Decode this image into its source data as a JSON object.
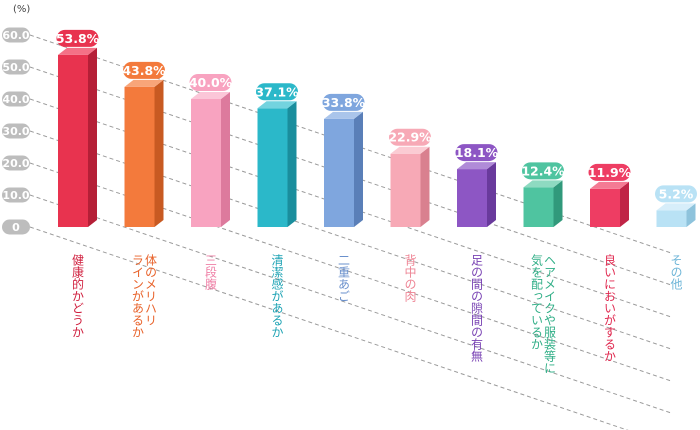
{
  "chart_data": {
    "type": "bar",
    "unit_label": "(%)",
    "ylim": [
      0,
      60
    ],
    "y_ticks": [
      "0",
      "10.0",
      "20.0",
      "30.0",
      "40.0",
      "50.0",
      "60.0"
    ],
    "grid": true,
    "categories": [
      "健康的かどうか",
      "体のメリハリ\nラインがあるか",
      "三段腹",
      "清潔感があるか",
      "二重あご",
      "背中の肉",
      "足の間の隙間の有無",
      "ヘアメイクや服装等に\n気を配っているか",
      "良いにおいがするか",
      "その他"
    ],
    "values": [
      53.8,
      43.8,
      40.0,
      37.1,
      33.8,
      22.9,
      18.1,
      12.4,
      11.9,
      5.2
    ],
    "value_labels": [
      "53.8%",
      "43.8%",
      "40.0%",
      "37.1%",
      "33.8%",
      "22.9%",
      "18.1%",
      "12.4%",
      "11.9%",
      "5.2%"
    ],
    "colors": [
      {
        "front": "#e8334f",
        "side": "#b51f37",
        "top": "#f47186",
        "text": "#d01f3e"
      },
      {
        "front": "#f37a3c",
        "side": "#c85a22",
        "top": "#f8a579",
        "text": "#e8622a"
      },
      {
        "front": "#f8a3c0",
        "side": "#dd7a9d",
        "top": "#fbc6d8",
        "text": "#ef7fa6"
      },
      {
        "front": "#2bb8c9",
        "side": "#1a8e9d",
        "top": "#73d3df",
        "text": "#1ea3b4"
      },
      {
        "front": "#7fa6de",
        "side": "#5a7fb8",
        "top": "#aac5eb",
        "text": "#6a90cc"
      },
      {
        "front": "#f7a9b6",
        "side": "#d9808f",
        "top": "#fbcbd3",
        "text": "#ee8595"
      },
      {
        "front": "#8d56c4",
        "side": "#693a9c",
        "top": "#b08bd8",
        "text": "#7a44b4"
      },
      {
        "front": "#4fc4a0",
        "side": "#31997b",
        "top": "#8edac1",
        "text": "#2fae86"
      },
      {
        "front": "#ee3d63",
        "side": "#c02446",
        "top": "#f47b94",
        "text": "#e0284f"
      },
      {
        "front": "#b9e2f5",
        "side": "#8ec3dc",
        "top": "#d7eefa",
        "text": "#6fb6d8"
      }
    ]
  }
}
